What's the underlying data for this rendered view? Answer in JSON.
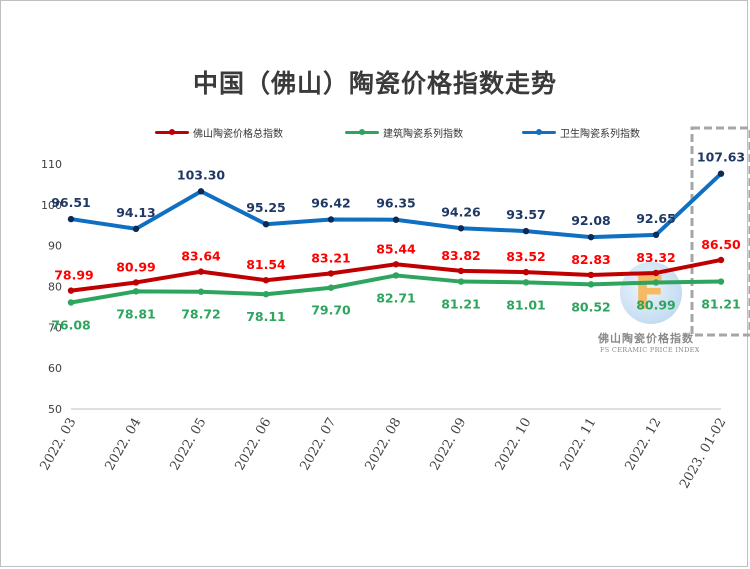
{
  "title": "中国（佛山）陶瓷价格指数走势",
  "watermark": {
    "logo_letter": "F",
    "name": "佛山陶瓷价格指数",
    "en": "FS CERAMIC PRICE INDEX"
  },
  "chart_data": {
    "type": "line",
    "title": "中国（佛山）陶瓷价格指数走势",
    "xlabel": "",
    "ylabel": "",
    "ylim": [
      50,
      110
    ],
    "yticks": [
      50,
      60,
      70,
      80,
      90,
      100,
      110
    ],
    "grid": false,
    "legend_position": "top-center",
    "categories": [
      "2022. 03",
      "2022. 04",
      "2022. 05",
      "2022. 06",
      "2022. 07",
      "2022. 08",
      "2022. 09",
      "2022. 10",
      "2022. 11",
      "2022. 12",
      "2023. 01-02"
    ],
    "series": [
      {
        "name": "佛山陶瓷价格总指数",
        "color": "#c00000",
        "label_color": "#ff0000",
        "values": [
          78.99,
          80.99,
          83.64,
          81.54,
          83.21,
          85.44,
          83.82,
          83.52,
          82.83,
          83.32,
          86.5
        ],
        "labels": [
          "78.99",
          "80.99",
          "83.64",
          "81.54",
          "83.21",
          "85.44",
          "83.82",
          "83.52",
          "82.83",
          "83.32",
          "86.50"
        ]
      },
      {
        "name": "建筑陶瓷系列指数",
        "color": "#2ea55f",
        "label_color": "#2ea55f",
        "values": [
          76.08,
          78.81,
          78.72,
          78.11,
          79.7,
          82.71,
          81.21,
          81.01,
          80.52,
          80.99,
          81.21
        ],
        "labels": [
          "76.08",
          "78.81",
          "78.72",
          "78.11",
          "79.70",
          "82.71",
          "81.21",
          "81.01",
          "80.52",
          "80.99",
          "81.21"
        ]
      },
      {
        "name": "卫生陶瓷系列指数",
        "color": "#0f6fc1",
        "label_color": "#1f3864",
        "values": [
          96.51,
          94.13,
          103.3,
          95.25,
          96.42,
          96.35,
          94.26,
          93.57,
          92.08,
          92.65,
          107.63
        ],
        "labels": [
          "96.51",
          "94.13",
          "103.30",
          "95.25",
          "96.42",
          "96.35",
          "94.26",
          "93.57",
          "92.08",
          "92.65",
          "107.63"
        ]
      }
    ],
    "highlight_category": "2023. 01-02"
  }
}
